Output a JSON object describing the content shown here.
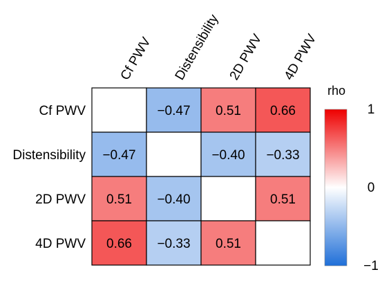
{
  "chart_data": {
    "type": "heatmap",
    "rows": [
      "Cf PWV",
      "Distensibility",
      "2D PWV",
      "4D PWV"
    ],
    "columns": [
      "Cf PWV",
      "Distensibility",
      "2D PWV",
      "4D PWV"
    ],
    "values": [
      [
        null,
        -0.47,
        0.51,
        0.66
      ],
      [
        -0.47,
        null,
        -0.4,
        -0.33
      ],
      [
        0.51,
        -0.4,
        null,
        0.51
      ],
      [
        0.66,
        -0.33,
        0.51,
        null
      ]
    ],
    "value_labels": [
      [
        "",
        "−0.47",
        "0.51",
        "0.66"
      ],
      [
        "−0.47",
        "",
        "−0.40",
        "−0.33"
      ],
      [
        "0.51",
        "−0.40",
        "",
        "0.51"
      ],
      [
        "0.66",
        "−0.33",
        "0.51",
        ""
      ]
    ],
    "colorbar": {
      "title": "rho",
      "range": [
        -1,
        1
      ],
      "ticks": [
        1,
        0,
        -1
      ],
      "tick_labels": [
        "1",
        "0",
        "−1"
      ],
      "colors": {
        "low": "#1f6fd8",
        "mid": "#ffffff",
        "high": "#ee0000"
      }
    }
  }
}
